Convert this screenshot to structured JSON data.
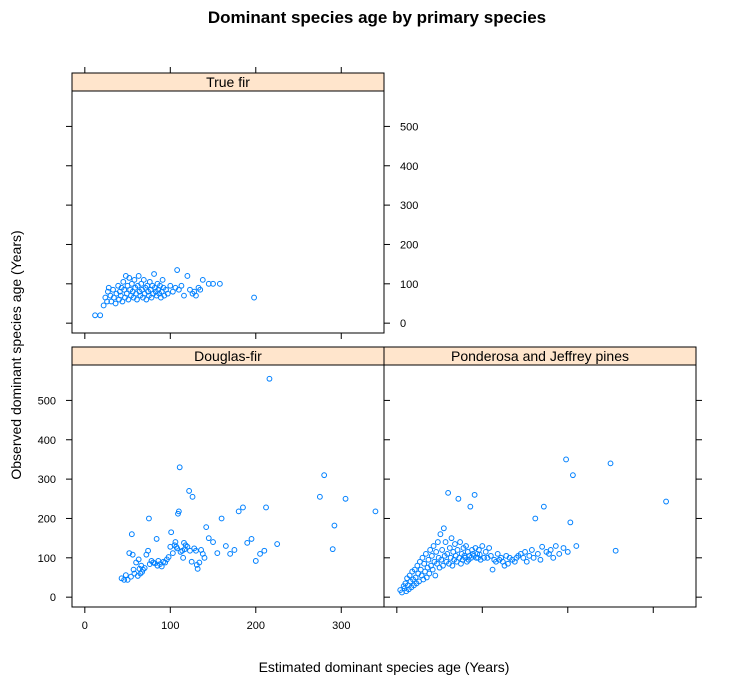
{
  "chart_data": {
    "type": "scatter",
    "title": "Dominant species age by primary species",
    "xlabel": "Estimated dominant species age (Years)",
    "ylabel": "Observed dominant species age (Years)",
    "xlim": [
      -15,
      350
    ],
    "ylim": [
      -25,
      590
    ],
    "xticks": [
      0,
      100,
      200,
      300
    ],
    "yticks": [
      0,
      100,
      200,
      300,
      400,
      500
    ],
    "grid": false,
    "point_color": "#0080ff",
    "strip_color": "#ffe5cc",
    "panels": [
      {
        "name": "True fir",
        "points": [
          [
            12,
            20
          ],
          [
            18,
            20
          ],
          [
            22,
            45
          ],
          [
            24,
            65
          ],
          [
            26,
            55
          ],
          [
            27,
            80
          ],
          [
            28,
            90
          ],
          [
            30,
            70
          ],
          [
            31,
            55
          ],
          [
            33,
            85
          ],
          [
            34,
            65
          ],
          [
            36,
            50
          ],
          [
            37,
            75
          ],
          [
            39,
            95
          ],
          [
            40,
            60
          ],
          [
            41,
            80
          ],
          [
            42,
            70
          ],
          [
            43,
            90
          ],
          [
            44,
            55
          ],
          [
            45,
            105
          ],
          [
            46,
            85
          ],
          [
            47,
            65
          ],
          [
            48,
            120
          ],
          [
            49,
            75
          ],
          [
            50,
            95
          ],
          [
            51,
            60
          ],
          [
            52,
            115
          ],
          [
            53,
            85
          ],
          [
            54,
            70
          ],
          [
            55,
            100
          ],
          [
            56,
            80
          ],
          [
            57,
            65
          ],
          [
            58,
            110
          ],
          [
            59,
            90
          ],
          [
            60,
            75
          ],
          [
            61,
            60
          ],
          [
            62,
            95
          ],
          [
            63,
            120
          ],
          [
            64,
            80
          ],
          [
            65,
            70
          ],
          [
            66,
            100
          ],
          [
            67,
            85
          ],
          [
            68,
            65
          ],
          [
            69,
            110
          ],
          [
            70,
            75
          ],
          [
            71,
            90
          ],
          [
            72,
            60
          ],
          [
            73,
            95
          ],
          [
            74,
            80
          ],
          [
            75,
            70
          ],
          [
            76,
            105
          ],
          [
            77,
            85
          ],
          [
            78,
            65
          ],
          [
            79,
            95
          ],
          [
            80,
            75
          ],
          [
            81,
            125
          ],
          [
            82,
            90
          ],
          [
            83,
            80
          ],
          [
            84,
            70
          ],
          [
            85,
            100
          ],
          [
            86,
            85
          ],
          [
            87,
            75
          ],
          [
            88,
            95
          ],
          [
            89,
            65
          ],
          [
            90,
            80
          ],
          [
            91,
            110
          ],
          [
            92,
            90
          ],
          [
            93,
            70
          ],
          [
            95,
            85
          ],
          [
            97,
            75
          ],
          [
            100,
            95
          ],
          [
            103,
            80
          ],
          [
            106,
            90
          ],
          [
            108,
            135
          ],
          [
            110,
            85
          ],
          [
            113,
            95
          ],
          [
            116,
            70
          ],
          [
            120,
            120
          ],
          [
            123,
            85
          ],
          [
            126,
            75
          ],
          [
            128,
            80
          ],
          [
            130,
            70
          ],
          [
            133,
            90
          ],
          [
            135,
            85
          ],
          [
            138,
            110
          ],
          [
            145,
            100
          ],
          [
            150,
            100
          ],
          [
            158,
            100
          ],
          [
            198,
            65
          ]
        ]
      },
      {
        "name": "Douglas-fir",
        "points": [
          [
            43,
            48
          ],
          [
            46,
            44
          ],
          [
            48,
            56
          ],
          [
            50,
            44
          ],
          [
            52,
            112
          ],
          [
            54,
            52
          ],
          [
            55,
            160
          ],
          [
            56,
            108
          ],
          [
            57,
            70
          ],
          [
            58,
            60
          ],
          [
            60,
            88
          ],
          [
            62,
            54
          ],
          [
            63,
            96
          ],
          [
            64,
            72
          ],
          [
            65,
            60
          ],
          [
            66,
            80
          ],
          [
            67,
            64
          ],
          [
            68,
            70
          ],
          [
            70,
            74
          ],
          [
            72,
            108
          ],
          [
            74,
            118
          ],
          [
            75,
            200
          ],
          [
            76,
            84
          ],
          [
            78,
            92
          ],
          [
            80,
            88
          ],
          [
            82,
            86
          ],
          [
            84,
            148
          ],
          [
            85,
            80
          ],
          [
            86,
            92
          ],
          [
            88,
            84
          ],
          [
            90,
            78
          ],
          [
            92,
            90
          ],
          [
            94,
            88
          ],
          [
            96,
            96
          ],
          [
            98,
            102
          ],
          [
            100,
            128
          ],
          [
            101,
            165
          ],
          [
            103,
            112
          ],
          [
            105,
            132
          ],
          [
            106,
            140
          ],
          [
            107,
            128
          ],
          [
            108,
            124
          ],
          [
            109,
            212
          ],
          [
            110,
            218
          ],
          [
            111,
            330
          ],
          [
            112,
            115
          ],
          [
            114,
            118
          ],
          [
            115,
            100
          ],
          [
            116,
            138
          ],
          [
            117,
            122
          ],
          [
            118,
            132
          ],
          [
            120,
            128
          ],
          [
            122,
            270
          ],
          [
            123,
            118
          ],
          [
            125,
            90
          ],
          [
            126,
            255
          ],
          [
            128,
            124
          ],
          [
            130,
            118
          ],
          [
            131,
            82
          ],
          [
            132,
            72
          ],
          [
            134,
            88
          ],
          [
            136,
            120
          ],
          [
            138,
            110
          ],
          [
            140,
            100
          ],
          [
            142,
            178
          ],
          [
            145,
            150
          ],
          [
            150,
            140
          ],
          [
            155,
            112
          ],
          [
            160,
            200
          ],
          [
            165,
            130
          ],
          [
            170,
            110
          ],
          [
            175,
            120
          ],
          [
            180,
            218
          ],
          [
            185,
            228
          ],
          [
            190,
            138
          ],
          [
            195,
            148
          ],
          [
            200,
            92
          ],
          [
            205,
            110
          ],
          [
            210,
            118
          ],
          [
            212,
            228
          ],
          [
            216,
            555
          ],
          [
            225,
            135
          ],
          [
            275,
            255
          ],
          [
            280,
            310
          ],
          [
            290,
            122
          ],
          [
            292,
            182
          ],
          [
            305,
            250
          ],
          [
            340,
            218
          ]
        ]
      },
      {
        "name": "Ponderosa and Jeffrey pines",
        "points": [
          [
            4,
            18
          ],
          [
            6,
            12
          ],
          [
            8,
            28
          ],
          [
            9,
            22
          ],
          [
            10,
            35
          ],
          [
            11,
            15
          ],
          [
            12,
            48
          ],
          [
            13,
            30
          ],
          [
            14,
            20
          ],
          [
            15,
            55
          ],
          [
            16,
            40
          ],
          [
            17,
            25
          ],
          [
            18,
            65
          ],
          [
            19,
            45
          ],
          [
            20,
            30
          ],
          [
            21,
            70
          ],
          [
            22,
            50
          ],
          [
            23,
            35
          ],
          [
            24,
            80
          ],
          [
            25,
            60
          ],
          [
            26,
            40
          ],
          [
            27,
            90
          ],
          [
            28,
            70
          ],
          [
            29,
            55
          ],
          [
            30,
            100
          ],
          [
            31,
            45
          ],
          [
            32,
            85
          ],
          [
            33,
            65
          ],
          [
            34,
            110
          ],
          [
            35,
            50
          ],
          [
            36,
            75
          ],
          [
            37,
            95
          ],
          [
            38,
            60
          ],
          [
            39,
            120
          ],
          [
            40,
            80
          ],
          [
            41,
            105
          ],
          [
            42,
            70
          ],
          [
            43,
            130
          ],
          [
            44,
            90
          ],
          [
            45,
            55
          ],
          [
            46,
            115
          ],
          [
            47,
            85
          ],
          [
            48,
            140
          ],
          [
            49,
            100
          ],
          [
            50,
            75
          ],
          [
            51,
            160
          ],
          [
            52,
            95
          ],
          [
            53,
            120
          ],
          [
            54,
            80
          ],
          [
            55,
            175
          ],
          [
            56,
            105
          ],
          [
            57,
            140
          ],
          [
            58,
            90
          ],
          [
            59,
            110
          ],
          [
            60,
            265
          ],
          [
            61,
            85
          ],
          [
            62,
            125
          ],
          [
            63,
            100
          ],
          [
            64,
            150
          ],
          [
            65,
            80
          ],
          [
            66,
            115
          ],
          [
            67,
            95
          ],
          [
            68,
            135
          ],
          [
            69,
            105
          ],
          [
            70,
            90
          ],
          [
            71,
            120
          ],
          [
            72,
            250
          ],
          [
            73,
            100
          ],
          [
            74,
            140
          ],
          [
            75,
            85
          ],
          [
            76,
            110
          ],
          [
            77,
            95
          ],
          [
            78,
            125
          ],
          [
            79,
            105
          ],
          [
            80,
            100
          ],
          [
            81,
            130
          ],
          [
            82,
            90
          ],
          [
            83,
            115
          ],
          [
            84,
            95
          ],
          [
            85,
            105
          ],
          [
            86,
            230
          ],
          [
            87,
            100
          ],
          [
            88,
            120
          ],
          [
            89,
            110
          ],
          [
            90,
            105
          ],
          [
            91,
            260
          ],
          [
            92,
            125
          ],
          [
            93,
            100
          ],
          [
            94,
            110
          ],
          [
            95,
            100
          ],
          [
            96,
            120
          ],
          [
            97,
            108
          ],
          [
            98,
            95
          ],
          [
            100,
            130
          ],
          [
            102,
            100
          ],
          [
            104,
            115
          ],
          [
            106,
            100
          ],
          [
            108,
            125
          ],
          [
            110,
            105
          ],
          [
            112,
            70
          ],
          [
            114,
            95
          ],
          [
            116,
            90
          ],
          [
            118,
            110
          ],
          [
            120,
            95
          ],
          [
            122,
            100
          ],
          [
            124,
            90
          ],
          [
            126,
            80
          ],
          [
            128,
            105
          ],
          [
            130,
            85
          ],
          [
            132,
            100
          ],
          [
            135,
            95
          ],
          [
            138,
            90
          ],
          [
            140,
            100
          ],
          [
            142,
            105
          ],
          [
            145,
            110
          ],
          [
            148,
            100
          ],
          [
            150,
            115
          ],
          [
            152,
            90
          ],
          [
            155,
            105
          ],
          [
            158,
            120
          ],
          [
            160,
            100
          ],
          [
            162,
            200
          ],
          [
            165,
            110
          ],
          [
            168,
            95
          ],
          [
            170,
            128
          ],
          [
            172,
            230
          ],
          [
            175,
            115
          ],
          [
            178,
            110
          ],
          [
            180,
            120
          ],
          [
            183,
            100
          ],
          [
            186,
            130
          ],
          [
            190,
            110
          ],
          [
            195,
            125
          ],
          [
            198,
            350
          ],
          [
            200,
            115
          ],
          [
            203,
            190
          ],
          [
            206,
            310
          ],
          [
            210,
            130
          ],
          [
            250,
            340
          ],
          [
            256,
            118
          ],
          [
            315,
            243
          ]
        ]
      }
    ]
  }
}
